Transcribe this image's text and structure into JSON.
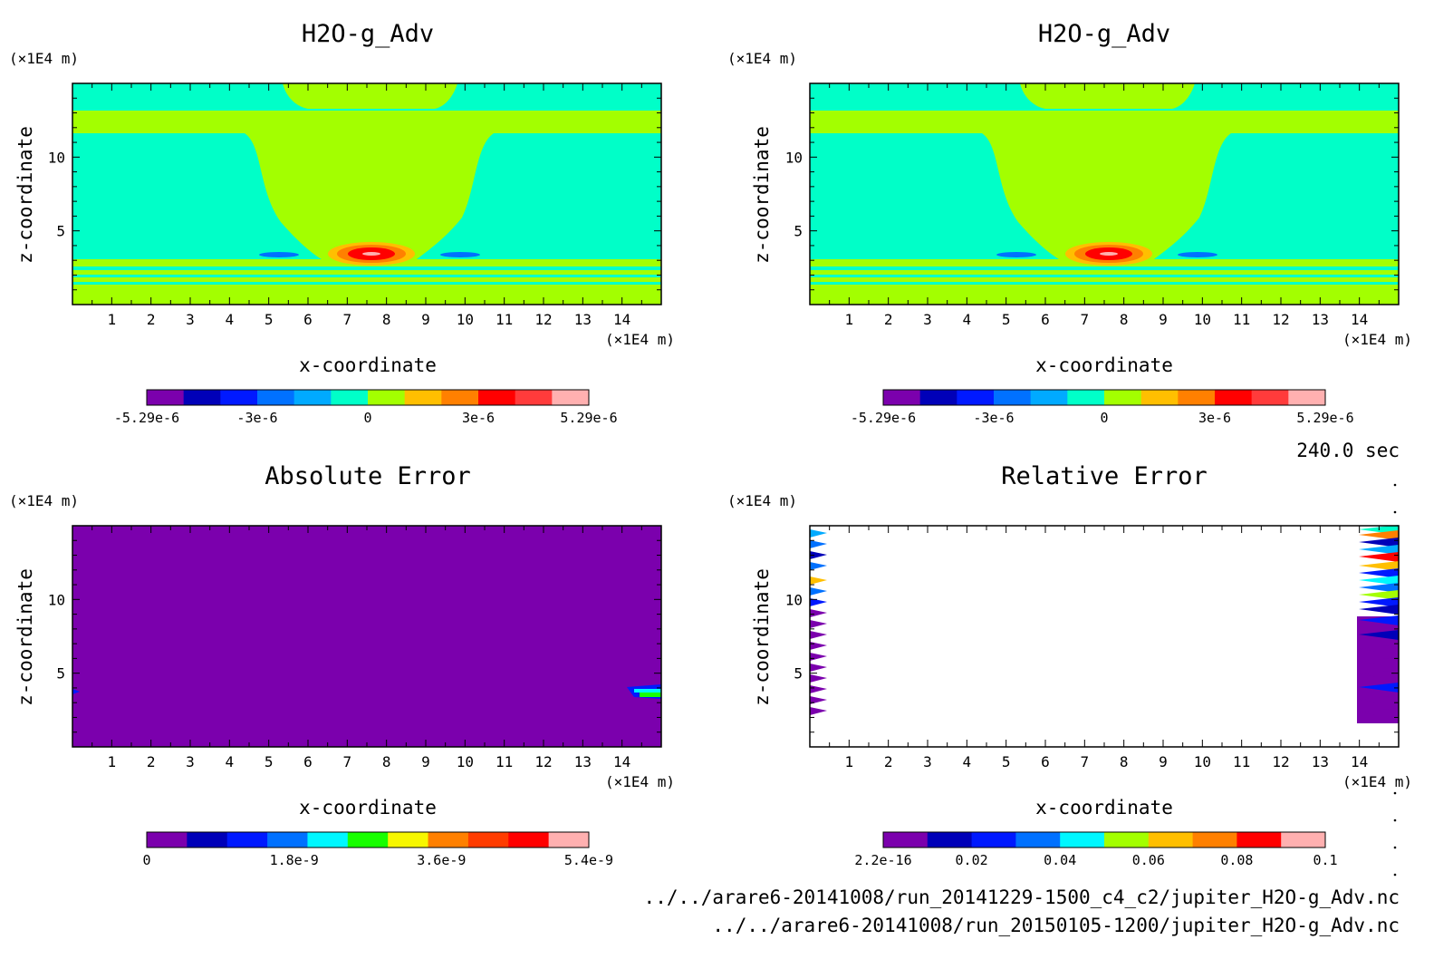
{
  "time_label": "240.0 sec",
  "files": [
    "../../arare6-20141008/run_20141229-1500_c4_c2/jupiter_H2O-g_Adv.nc",
    "../../arare6-20141008/run_20150105-1200/jupiter_H2O-g_Adv.nc"
  ],
  "colors": {
    "purple": "#7b00ad",
    "navy": "#0000b8",
    "blue": "#0019ff",
    "mid_blue": "#0071ff",
    "sky": "#00aaff",
    "cyan": "#00f7ff",
    "aqua": "#00ffc8",
    "green": "#18ff00",
    "lime": "#a3ff00",
    "yellow": "#f7f700",
    "gold": "#ffbf00",
    "orange": "#ff8000",
    "red_orange": "#ff3c00",
    "red": "#ff0000",
    "bright_red": "#ff3b3b",
    "pink": "#ffb0b0"
  },
  "chart_data": [
    {
      "type": "heatmap",
      "title": "H2O-g_Adv",
      "xlabel": "x-coordinate",
      "ylabel": "z-coordinate",
      "x_unit": "(×1E4 m)",
      "y_unit": "(×1E4 m)",
      "xlim": [
        0,
        15
      ],
      "ylim": [
        0,
        15
      ],
      "xticks": [
        "1",
        "2",
        "3",
        "4",
        "5",
        "6",
        "7",
        "8",
        "9",
        "10",
        "11",
        "12",
        "13",
        "14"
      ],
      "yticks": [
        "5",
        "10"
      ],
      "colorbar": {
        "colors": [
          "#7b00ad",
          "#0000b8",
          "#0019ff",
          "#0071ff",
          "#00aaff",
          "#00ffc8",
          "#a3ff00",
          "#ffbf00",
          "#ff8000",
          "#ff0000",
          "#ff3b3b",
          "#ffb0b0"
        ],
        "labels": [
          "-5.29e-6",
          "-3e-6",
          "0",
          "3e-6",
          "5.29e-6"
        ]
      }
    },
    {
      "type": "heatmap",
      "title": "H2O-g_Adv",
      "xlabel": "x-coordinate",
      "ylabel": "z-coordinate",
      "x_unit": "(×1E4 m)",
      "y_unit": "(×1E4 m)",
      "xlim": [
        0,
        15
      ],
      "ylim": [
        0,
        15
      ],
      "xticks": [
        "1",
        "2",
        "3",
        "4",
        "5",
        "6",
        "7",
        "8",
        "9",
        "10",
        "11",
        "12",
        "13",
        "14"
      ],
      "yticks": [
        "5",
        "10"
      ],
      "colorbar": {
        "colors": [
          "#7b00ad",
          "#0000b8",
          "#0019ff",
          "#0071ff",
          "#00aaff",
          "#00ffc8",
          "#a3ff00",
          "#ffbf00",
          "#ff8000",
          "#ff0000",
          "#ff3b3b",
          "#ffb0b0"
        ],
        "labels": [
          "-5.29e-6",
          "-3e-6",
          "0",
          "3e-6",
          "5.29e-6"
        ]
      }
    },
    {
      "type": "heatmap",
      "title": "Absolute Error",
      "xlabel": "x-coordinate",
      "ylabel": "z-coordinate",
      "x_unit": "(×1E4 m)",
      "y_unit": "(×1E4 m)",
      "xlim": [
        0,
        15
      ],
      "ylim": [
        0,
        15
      ],
      "xticks": [
        "1",
        "2",
        "3",
        "4",
        "5",
        "6",
        "7",
        "8",
        "9",
        "10",
        "11",
        "12",
        "13",
        "14"
      ],
      "yticks": [
        "5",
        "10"
      ],
      "colorbar": {
        "colors": [
          "#7b00ad",
          "#0000b8",
          "#0019ff",
          "#0071ff",
          "#00f7ff",
          "#18ff00",
          "#f7f700",
          "#ff8000",
          "#ff3c00",
          "#ff0000",
          "#ffb0b0"
        ],
        "labels": [
          "0",
          "1.8e-9",
          "3.6e-9",
          "5.4e-9"
        ]
      }
    },
    {
      "type": "heatmap",
      "title": "Relative Error",
      "xlabel": "x-coordinate",
      "ylabel": "z-coordinate",
      "x_unit": "(×1E4 m)",
      "y_unit": "(×1E4 m)",
      "xlim": [
        0,
        15
      ],
      "ylim": [
        0,
        15
      ],
      "xticks": [
        "1",
        "2",
        "3",
        "4",
        "5",
        "6",
        "7",
        "8",
        "9",
        "10",
        "11",
        "12",
        "13",
        "14"
      ],
      "yticks": [
        "5",
        "10"
      ],
      "colorbar": {
        "colors": [
          "#7b00ad",
          "#0000b8",
          "#0019ff",
          "#0071ff",
          "#00f7ff",
          "#a3ff00",
          "#ffbf00",
          "#ff8000",
          "#ff0000",
          "#ffb0b0"
        ],
        "labels": [
          "2.2e-16",
          "0.02",
          "0.04",
          "0.06",
          "0.08",
          "0.1"
        ]
      }
    }
  ]
}
